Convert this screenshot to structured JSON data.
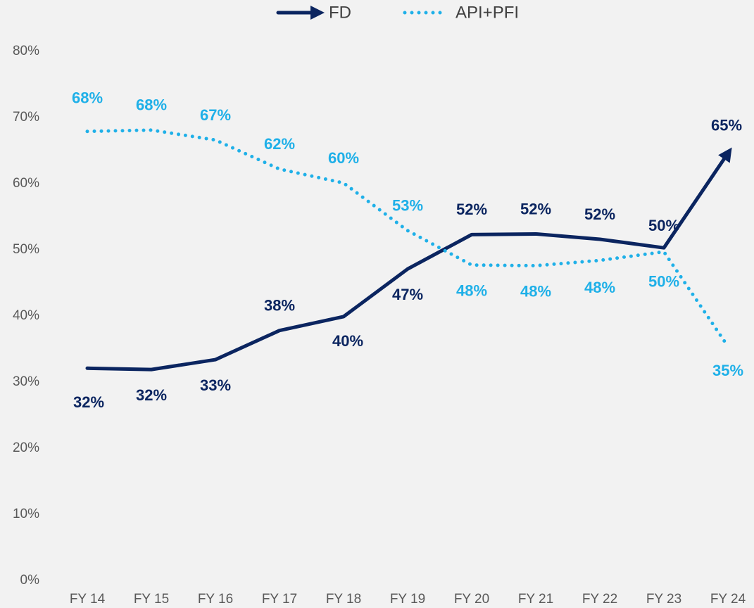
{
  "chart_data": {
    "type": "line",
    "categories": [
      "FY 14",
      "FY 15",
      "FY 16",
      "FY 17",
      "FY 18",
      "FY 19",
      "FY 20",
      "FY 21",
      "FY 22",
      "FY 23",
      "FY 24"
    ],
    "series": [
      {
        "name": "FD",
        "color": "#0b2560",
        "values": [
          32.1,
          31.9,
          33.4,
          37.8,
          39.9,
          47.1,
          52.3,
          52.4,
          51.6,
          50.3,
          64.6
        ],
        "value_labels": [
          "32%",
          "32%",
          "33%",
          "38%",
          "40%",
          "47%",
          "52%",
          "52%",
          "52%",
          "50%",
          "65%"
        ]
      },
      {
        "name": "API+PFI",
        "color": "#1fb0e8",
        "values": [
          67.9,
          68.1,
          66.6,
          62.2,
          60.1,
          52.9,
          47.7,
          47.6,
          48.4,
          49.7,
          35.4
        ],
        "value_labels": [
          "68%",
          "68%",
          "67%",
          "62%",
          "60%",
          "53%",
          "48%",
          "48%",
          "48%",
          "50%",
          "35%"
        ]
      }
    ],
    "ylim": [
      0,
      80
    ],
    "yticks": [
      {
        "value": 0,
        "label": "0%"
      },
      {
        "value": 10,
        "label": "10%"
      },
      {
        "value": 20,
        "label": "20%"
      },
      {
        "value": 30,
        "label": "30%"
      },
      {
        "value": 40,
        "label": "40%"
      },
      {
        "value": 50,
        "label": "50%"
      },
      {
        "value": 60,
        "label": "60%"
      },
      {
        "value": 70,
        "label": "70%"
      },
      {
        "value": 80,
        "label": "80%"
      }
    ],
    "grid": false,
    "legend": "top"
  }
}
